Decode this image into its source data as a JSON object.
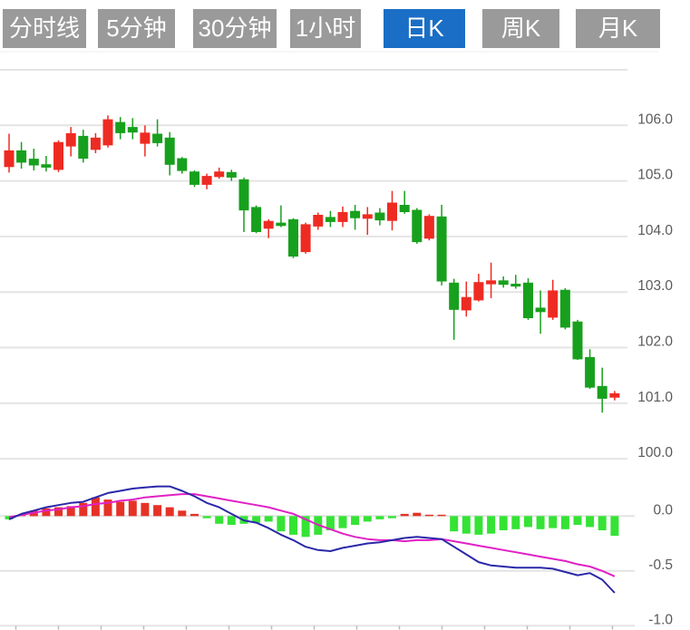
{
  "tabs": [
    {
      "label": "分时线",
      "active": false
    },
    {
      "label": "5分钟",
      "active": false
    },
    {
      "label": "30分钟",
      "active": false
    },
    {
      "label": "1小时",
      "active": false
    },
    {
      "label": "日K",
      "active": true
    },
    {
      "label": "周K",
      "active": false
    },
    {
      "label": "月K",
      "active": false
    }
  ],
  "colors": {
    "tab_bg": "#9a9a9a",
    "tab_active_bg": "#1b6ec5",
    "tab_text": "#ffffff",
    "up": "#ee2b22",
    "down": "#17a01d",
    "hist_up": "#e63226",
    "hist_down": "#35e335",
    "dif_line": "#2a28a8",
    "dea_line": "#e120c5",
    "grid": "#e4e4e4",
    "axis_label": "#5a5a5a"
  },
  "chart_data": {
    "type": "candlestick",
    "subtype": "kline-with-macd",
    "conventions": {
      "rising_candle": "red",
      "falling_candle": "green"
    },
    "price_panel": {
      "y_tick_labels": [
        "106.0",
        "105.0",
        "104.0",
        "103.0",
        "102.0",
        "101.0",
        "100.0"
      ],
      "y_tick_values": [
        106,
        105,
        104,
        103,
        102,
        101,
        100
      ],
      "grid_values": [
        107,
        106,
        105,
        104,
        103,
        102,
        101,
        100
      ],
      "ylim": [
        100.0,
        107.3
      ]
    },
    "macd_panel": {
      "y_tick_labels": [
        "0.0",
        "-0.5",
        "-1.0"
      ],
      "y_tick_values": [
        0,
        -0.5,
        -1
      ],
      "grid_values": [
        0,
        -0.5,
        -1
      ],
      "ylim": [
        -1.05,
        0.35
      ]
    },
    "x_axis": {
      "tick_labels": [],
      "tick_count": 15
    },
    "candles_ochl": [
      [
        105.25,
        105.55,
        105.85,
        105.15
      ],
      [
        105.55,
        105.33,
        105.7,
        105.22
      ],
      [
        105.4,
        105.28,
        105.58,
        105.19
      ],
      [
        105.3,
        105.24,
        105.45,
        105.17
      ],
      [
        105.2,
        105.7,
        105.73,
        105.16
      ],
      [
        105.62,
        105.86,
        105.97,
        105.44
      ],
      [
        105.81,
        105.4,
        105.92,
        105.33
      ],
      [
        105.56,
        105.78,
        105.86,
        105.5
      ],
      [
        105.64,
        106.11,
        106.18,
        105.6
      ],
      [
        106.06,
        105.86,
        106.15,
        105.75
      ],
      [
        105.97,
        105.87,
        106.13,
        105.75
      ],
      [
        105.67,
        105.87,
        106.0,
        105.44
      ],
      [
        105.85,
        105.68,
        106.11,
        105.62
      ],
      [
        105.78,
        105.29,
        105.88,
        105.1
      ],
      [
        105.41,
        105.18,
        105.43,
        105.13
      ],
      [
        105.17,
        104.93,
        105.19,
        104.89
      ],
      [
        104.93,
        105.09,
        105.13,
        104.85
      ],
      [
        105.07,
        105.17,
        105.24,
        105.04
      ],
      [
        105.16,
        105.06,
        105.2,
        105.0
      ],
      [
        105.03,
        104.47,
        105.06,
        104.08
      ],
      [
        104.53,
        104.08,
        104.56,
        104.06
      ],
      [
        104.14,
        104.28,
        104.31,
        103.97
      ],
      [
        104.25,
        104.19,
        104.56,
        104.17
      ],
      [
        104.31,
        103.64,
        104.33,
        103.61
      ],
      [
        103.72,
        104.22,
        104.25,
        103.69
      ],
      [
        104.18,
        104.39,
        104.43,
        104.12
      ],
      [
        104.35,
        104.26,
        104.46,
        104.17
      ],
      [
        104.26,
        104.44,
        104.54,
        104.17
      ],
      [
        104.46,
        104.33,
        104.57,
        104.12
      ],
      [
        104.32,
        104.4,
        104.53,
        104.03
      ],
      [
        104.43,
        104.29,
        104.51,
        104.2
      ],
      [
        104.28,
        104.61,
        104.82,
        104.11
      ],
      [
        104.57,
        104.44,
        104.82,
        104.41
      ],
      [
        104.48,
        103.9,
        104.51,
        103.87
      ],
      [
        103.96,
        104.37,
        104.4,
        103.93
      ],
      [
        104.36,
        103.19,
        104.57,
        103.12
      ],
      [
        103.17,
        102.68,
        103.24,
        102.14
      ],
      [
        102.67,
        102.91,
        103.19,
        102.56
      ],
      [
        102.85,
        103.18,
        103.33,
        102.83
      ],
      [
        103.14,
        103.21,
        103.53,
        102.89
      ],
      [
        103.21,
        103.13,
        103.28,
        103.08
      ],
      [
        103.15,
        103.1,
        103.31,
        103.06
      ],
      [
        103.17,
        102.53,
        103.25,
        102.5
      ],
      [
        102.72,
        102.64,
        103.03,
        102.25
      ],
      [
        102.54,
        103.03,
        103.22,
        102.5
      ],
      [
        103.04,
        102.36,
        103.07,
        102.33
      ],
      [
        102.47,
        101.79,
        102.5,
        101.78
      ],
      [
        101.83,
        101.28,
        101.97,
        101.26
      ],
      [
        101.31,
        101.08,
        101.64,
        100.83
      ],
      [
        101.1,
        101.18,
        101.22,
        101.05
      ]
    ],
    "macd": {
      "histogram": [
        -0.03,
        0.01,
        0.05,
        0.07,
        0.08,
        0.09,
        0.12,
        0.17,
        0.15,
        0.13,
        0.14,
        0.12,
        0.1,
        0.08,
        0.05,
        0.02,
        -0.02,
        -0.07,
        -0.08,
        -0.07,
        -0.06,
        -0.05,
        -0.14,
        -0.17,
        -0.19,
        -0.17,
        -0.13,
        -0.11,
        -0.08,
        -0.05,
        -0.03,
        -0.02,
        0.02,
        0.03,
        0.01,
        0.01,
        -0.14,
        -0.16,
        -0.17,
        -0.16,
        -0.13,
        -0.12,
        -0.1,
        -0.12,
        -0.11,
        -0.12,
        -0.08,
        -0.1,
        -0.13,
        -0.18
      ],
      "dif": [
        -0.03,
        0.02,
        0.05,
        0.08,
        0.1,
        0.12,
        0.13,
        0.17,
        0.21,
        0.23,
        0.25,
        0.26,
        0.27,
        0.27,
        0.23,
        0.18,
        0.12,
        0.08,
        0.02,
        -0.04,
        -0.06,
        -0.11,
        -0.17,
        -0.22,
        -0.28,
        -0.31,
        -0.32,
        -0.29,
        -0.27,
        -0.25,
        -0.24,
        -0.22,
        -0.2,
        -0.19,
        -0.2,
        -0.21,
        -0.28,
        -0.35,
        -0.42,
        -0.45,
        -0.46,
        -0.47,
        -0.47,
        -0.47,
        -0.48,
        -0.51,
        -0.54,
        -0.52,
        -0.58,
        -0.7
      ],
      "dea": [
        -0.01,
        0.01,
        0.03,
        0.05,
        0.06,
        0.08,
        0.09,
        0.11,
        0.12,
        0.14,
        0.15,
        0.17,
        0.18,
        0.19,
        0.2,
        0.2,
        0.18,
        0.16,
        0.14,
        0.12,
        0.1,
        0.08,
        0.05,
        0.02,
        -0.03,
        -0.08,
        -0.12,
        -0.16,
        -0.19,
        -0.21,
        -0.22,
        -0.22,
        -0.23,
        -0.22,
        -0.22,
        -0.21,
        -0.23,
        -0.25,
        -0.27,
        -0.29,
        -0.31,
        -0.33,
        -0.35,
        -0.37,
        -0.39,
        -0.41,
        -0.44,
        -0.46,
        -0.5,
        -0.55
      ]
    }
  }
}
